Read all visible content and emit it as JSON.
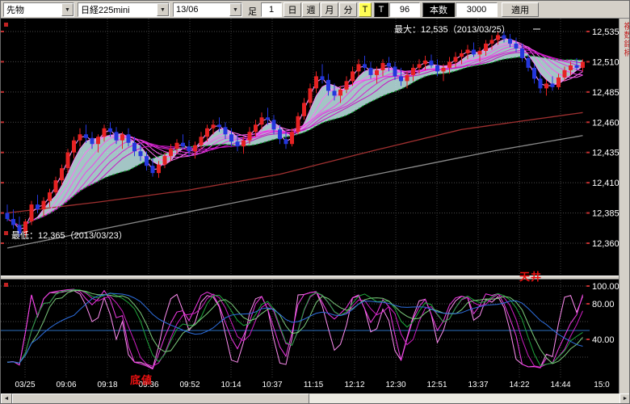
{
  "toolbar": {
    "instrument_type": "先物",
    "instrument": "日経225mini",
    "contract_month": "13/06",
    "bar_label": "足",
    "bar_value": "1",
    "timeframes": [
      "日",
      "週",
      "月",
      "分"
    ],
    "tick_button": "T",
    "t_label": "T",
    "tick_count": "96",
    "bars_label": "本数",
    "bars_count": "3000",
    "apply_label": "適用"
  },
  "side_tab": {
    "label": "複数銘柄"
  },
  "main_chart": {
    "max_annotation": "最大：12,535（2013/03/25）",
    "min_annotation": "最低：12,365（2013/03/23）",
    "y_axis_labels": [
      "12,535",
      "12,510",
      "12,485",
      "12,460",
      "12,435",
      "12,410",
      "12,385",
      "12,360"
    ]
  },
  "indicator": {
    "ceiling_label": "天井",
    "bottom_label": "底値"
  },
  "colors": {
    "background": "#000000",
    "grid": "#4a4a4a",
    "candle_up": "#e62222",
    "candle_down": "#2437dd",
    "cloud": "#bfe8e8",
    "annotation_red": "#ee1111",
    "toolbar_bg": "#d4d0c8",
    "axis_text": "#ffffff"
  },
  "chart_data": {
    "type": "candlestick_with_oscillator",
    "price_max": {
      "value": 12535,
      "date": "2013/03/25"
    },
    "price_min": {
      "value": 12365,
      "date": "2013/03/23"
    },
    "y_axis": {
      "min": 12360,
      "max": 12535,
      "step": 25,
      "gridlines": [
        12535,
        12510,
        12485,
        12460,
        12435,
        12410,
        12385,
        12360
      ]
    },
    "x_labels": [
      "03/25",
      "09:06",
      "09:18",
      "09:36",
      "09:52",
      "10:14",
      "10:37",
      "11:15",
      "12:12",
      "12:30",
      "12:51",
      "13:37",
      "14:22",
      "14:44",
      "15:0"
    ],
    "candles": [
      [
        12385,
        12392,
        12378,
        12380
      ],
      [
        12380,
        12388,
        12372,
        12375
      ],
      [
        12375,
        12382,
        12365,
        12368
      ],
      [
        12368,
        12380,
        12365,
        12378
      ],
      [
        12378,
        12395,
        12375,
        12392
      ],
      [
        12392,
        12400,
        12385,
        12388
      ],
      [
        12388,
        12398,
        12382,
        12395
      ],
      [
        12395,
        12405,
        12390,
        12402
      ],
      [
        12402,
        12415,
        12400,
        12412
      ],
      [
        12412,
        12425,
        12408,
        12422
      ],
      [
        12422,
        12438,
        12418,
        12435
      ],
      [
        12435,
        12448,
        12430,
        12445
      ],
      [
        12445,
        12455,
        12440,
        12450
      ],
      [
        12450,
        12458,
        12443,
        12447
      ],
      [
        12447,
        12452,
        12438,
        12442
      ],
      [
        12442,
        12450,
        12435,
        12448
      ],
      [
        12448,
        12458,
        12444,
        12455
      ],
      [
        12455,
        12460,
        12448,
        12452
      ],
      [
        12452,
        12456,
        12442,
        12445
      ],
      [
        12445,
        12452,
        12438,
        12450
      ],
      [
        12450,
        12455,
        12440,
        12443
      ],
      [
        12443,
        12448,
        12432,
        12436
      ],
      [
        12436,
        12442,
        12428,
        12432
      ],
      [
        12432,
        12436,
        12420,
        12424
      ],
      [
        12424,
        12430,
        12415,
        12418
      ],
      [
        12418,
        12428,
        12414,
        12425
      ],
      [
        12425,
        12435,
        12422,
        12432
      ],
      [
        12432,
        12442,
        12428,
        12438
      ],
      [
        12438,
        12446,
        12434,
        12443
      ],
      [
        12443,
        12450,
        12438,
        12440
      ],
      [
        12440,
        12445,
        12432,
        12436
      ],
      [
        12436,
        12444,
        12430,
        12441
      ],
      [
        12441,
        12452,
        12438,
        12448
      ],
      [
        12448,
        12458,
        12444,
        12455
      ],
      [
        12455,
        12462,
        12450,
        12458
      ],
      [
        12458,
        12464,
        12452,
        12456
      ],
      [
        12456,
        12460,
        12446,
        12450
      ],
      [
        12450,
        12455,
        12440,
        12444
      ],
      [
        12444,
        12450,
        12436,
        12440
      ],
      [
        12440,
        12448,
        12434,
        12445
      ],
      [
        12445,
        12456,
        12442,
        12452
      ],
      [
        12452,
        12462,
        12448,
        12458
      ],
      [
        12458,
        12468,
        12454,
        12464
      ],
      [
        12464,
        12472,
        12458,
        12462
      ],
      [
        12462,
        12466,
        12450,
        12454
      ],
      [
        12454,
        12458,
        12442,
        12446
      ],
      [
        12446,
        12452,
        12438,
        12442
      ],
      [
        12442,
        12455,
        12440,
        12452
      ],
      [
        12452,
        12468,
        12450,
        12465
      ],
      [
        12465,
        12480,
        12462,
        12476
      ],
      [
        12476,
        12492,
        12472,
        12488
      ],
      [
        12488,
        12502,
        12484,
        12498
      ],
      [
        12498,
        12508,
        12492,
        12495
      ],
      [
        12495,
        12500,
        12482,
        12486
      ],
      [
        12486,
        12492,
        12478,
        12482
      ],
      [
        12482,
        12490,
        12476,
        12487
      ],
      [
        12487,
        12498,
        12484,
        12494
      ],
      [
        12494,
        12506,
        12490,
        12502
      ],
      [
        12502,
        12512,
        12498,
        12508
      ],
      [
        12508,
        12515,
        12502,
        12505
      ],
      [
        12505,
        12510,
        12496,
        12499
      ],
      [
        12499,
        12506,
        12492,
        12503
      ],
      [
        12503,
        12512,
        12498,
        12509
      ],
      [
        12509,
        12514,
        12502,
        12506
      ],
      [
        12506,
        12510,
        12495,
        12498
      ],
      [
        12498,
        12505,
        12490,
        12494
      ],
      [
        12494,
        12502,
        12488,
        12499
      ],
      [
        12499,
        12508,
        12494,
        12505
      ],
      [
        12505,
        12512,
        12500,
        12508
      ],
      [
        12508,
        12515,
        12503,
        12511
      ],
      [
        12511,
        12516,
        12505,
        12507
      ],
      [
        12507,
        12512,
        12498,
        12502
      ],
      [
        12502,
        12508,
        12494,
        12505
      ],
      [
        12505,
        12514,
        12500,
        12510
      ],
      [
        12510,
        12518,
        12505,
        12514
      ],
      [
        12514,
        12520,
        12508,
        12517
      ],
      [
        12517,
        12524,
        12512,
        12520
      ],
      [
        12520,
        12526,
        12514,
        12516
      ],
      [
        12516,
        12522,
        12510,
        12519
      ],
      [
        12519,
        12528,
        12515,
        12525
      ],
      [
        12525,
        12532,
        12520,
        12528
      ],
      [
        12528,
        12535,
        12524,
        12532
      ],
      [
        12532,
        12535,
        12526,
        12529
      ],
      [
        12529,
        12533,
        12522,
        12525
      ],
      [
        12525,
        12530,
        12518,
        12521
      ],
      [
        12521,
        12525,
        12510,
        12513
      ],
      [
        12513,
        12516,
        12502,
        12505
      ],
      [
        12505,
        12508,
        12492,
        12496
      ],
      [
        12496,
        12500,
        12484,
        12488
      ],
      [
        12488,
        12495,
        12482,
        12492
      ],
      [
        12492,
        12498,
        12486,
        12489
      ],
      [
        12489,
        12500,
        12487,
        12497
      ],
      [
        12497,
        12506,
        12494,
        12503
      ],
      [
        12503,
        12510,
        12499,
        12507
      ],
      [
        12507,
        12513,
        12503,
        12505
      ],
      [
        12505,
        12512,
        12502,
        12510
      ]
    ],
    "overlays": {
      "ribbon": {
        "periods": [
          2,
          4,
          6,
          8,
          10,
          12,
          14,
          16
        ],
        "colors": [
          "#ff9bff",
          "#ff85fa",
          "#ff70f5",
          "#f75bef",
          "#ee46e8",
          "#e231dd",
          "#d51ed0",
          "#c711c2"
        ]
      },
      "ma_green_dotted": {
        "period": 21,
        "color": "#00a020"
      },
      "ma_long_red": {
        "color": "#a03030",
        "points": [
          [
            0,
            12385
          ],
          [
            15,
            12394
          ],
          [
            30,
            12404
          ],
          [
            45,
            12417
          ],
          [
            60,
            12436
          ],
          [
            75,
            12454
          ],
          [
            95,
            12468
          ]
        ]
      },
      "ma_long_gray": {
        "color": "#8a8a8a",
        "points": [
          [
            0,
            12356
          ],
          [
            20,
            12376
          ],
          [
            40,
            12396
          ],
          [
            60,
            12416
          ],
          [
            80,
            12436
          ],
          [
            95,
            12449
          ]
        ]
      },
      "cloud": {
        "upper_period": 4,
        "lower_period": 21,
        "color": "#bfe8e8"
      }
    },
    "oscillator": {
      "type": "stochastics",
      "levels": [
        100,
        80,
        60,
        40,
        20
      ],
      "level_line_blue": 50,
      "y_labels": [
        {
          "v": 100,
          "t": "100.00"
        },
        {
          "v": 80,
          "t": "80.00"
        },
        {
          "v": 40,
          "t": "40.00"
        }
      ],
      "lines": [
        {
          "name": "k5",
          "stoch": 5,
          "smooth": 1,
          "color": "#ff8df2"
        },
        {
          "name": "k9",
          "stoch": 9,
          "smooth": 1,
          "color": "#f23ae6"
        },
        {
          "name": "d9",
          "stoch": 9,
          "smooth": 3,
          "color": "#d01ec4"
        },
        {
          "name": "k14",
          "stoch": 14,
          "smooth": 3,
          "color": "#1fa83c"
        },
        {
          "name": "d14",
          "stoch": 14,
          "smooth": 5,
          "color": "#7ccc7c"
        },
        {
          "name": "slow",
          "stoch": 14,
          "smooth": 12,
          "color": "#2e6fe0"
        }
      ]
    }
  }
}
